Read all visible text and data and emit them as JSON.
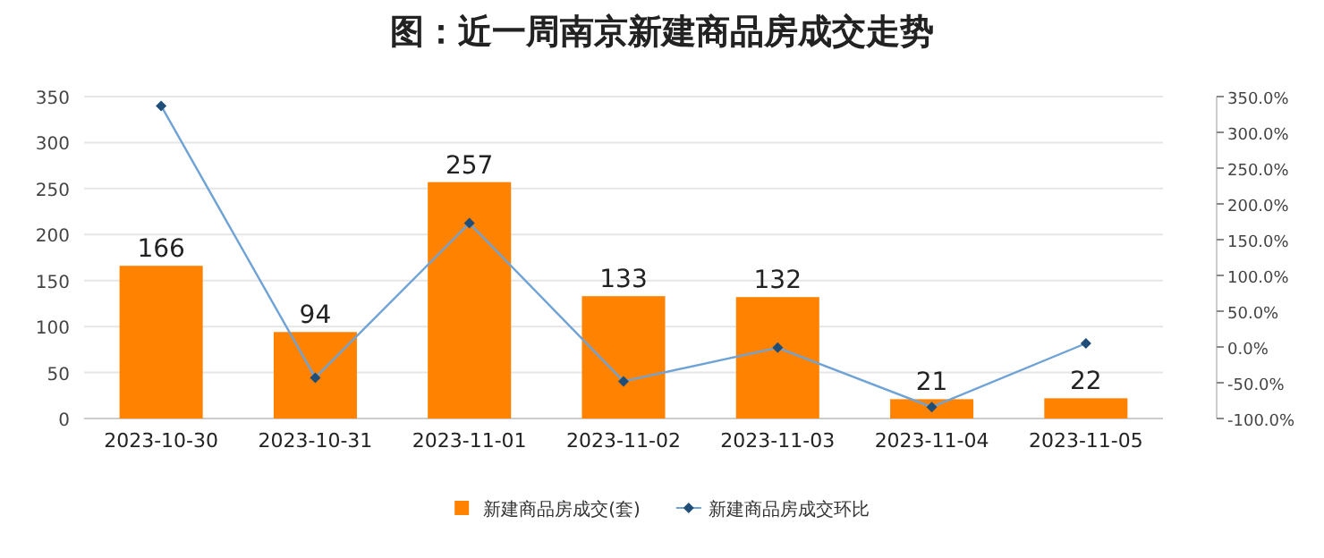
{
  "chart_data": {
    "type": "bar",
    "title": "图：近一周南京新建商品房成交走势",
    "categories": [
      "2023-10-30",
      "2023-10-31",
      "2023-11-01",
      "2023-11-02",
      "2023-11-03",
      "2023-11-04",
      "2023-11-05"
    ],
    "series": [
      {
        "name": "新建商品房成交(套)",
        "color": "#ff8200",
        "values": [
          166,
          94,
          257,
          133,
          132,
          21,
          22
        ],
        "value_labels": [
          "166",
          "94",
          "257",
          "133",
          "132",
          "21",
          "22"
        ]
      },
      {
        "name": "新建商品房成交环比",
        "type": "line",
        "axis": "y2",
        "color": "#6fa3d6",
        "marker": "diamond",
        "values": [
          337,
          -43,
          173,
          -48,
          -1,
          -84,
          5
        ]
      }
    ],
    "ylim": [
      0,
      350
    ],
    "yticks": [
      0,
      50,
      100,
      150,
      200,
      250,
      300,
      350
    ],
    "y2lim": [
      -100,
      350
    ],
    "y2ticks": [
      {
        "value": -100,
        "label": "-100.0%"
      },
      {
        "value": -50,
        "label": "-50.0%"
      },
      {
        "value": 0,
        "label": "0.0%"
      },
      {
        "value": 50,
        "label": "50.0%"
      },
      {
        "value": 100,
        "label": "100.0%"
      },
      {
        "value": 150,
        "label": "150.0%"
      },
      {
        "value": 200,
        "label": "200.0%"
      },
      {
        "value": 250,
        "label": "250.0%"
      },
      {
        "value": 300,
        "label": "300.0%"
      },
      {
        "value": 350,
        "label": "350.0%"
      }
    ],
    "grid": "y",
    "legend": "bottom"
  }
}
